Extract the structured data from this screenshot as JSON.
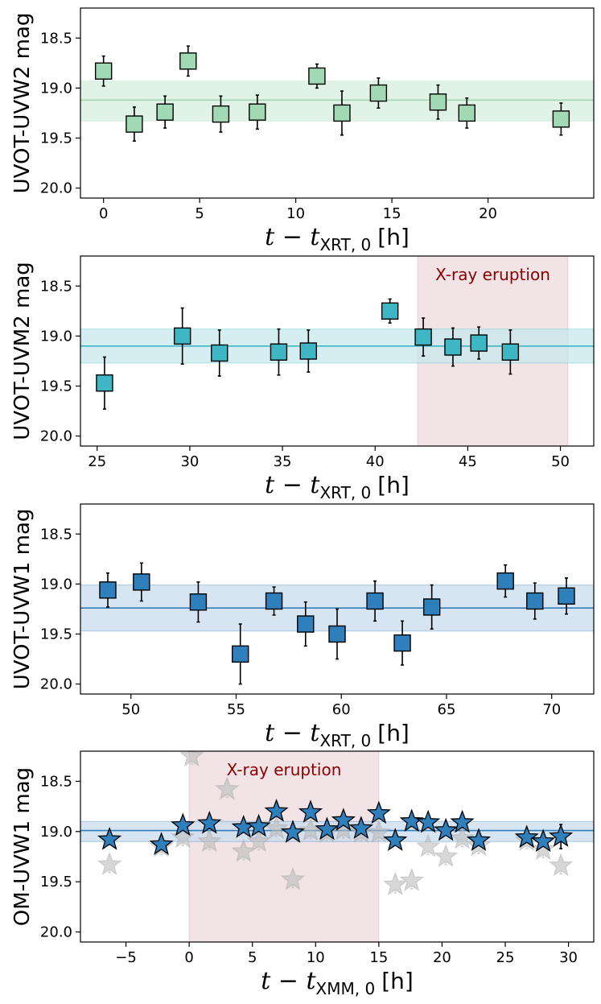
{
  "chart_data": [
    {
      "type": "scatter",
      "marker": "square",
      "ylabel": "UVOT-UVW2 mag",
      "xlabel": {
        "main": "t − t",
        "sub": "XRT, 0",
        "unit": "[h]"
      },
      "xlim": [
        -1.2,
        25.5
      ],
      "ylim": [
        20.1,
        18.2
      ],
      "xticks": [
        0,
        5,
        10,
        15,
        20
      ],
      "yticks": [
        18.5,
        19.0,
        19.5,
        20.0
      ],
      "xtick_labels": [
        "0",
        "5",
        "10",
        "15",
        "20"
      ],
      "ytick_labels": [
        "18.5",
        "19.0",
        "19.5",
        "20.0"
      ],
      "mean": 19.12,
      "band": [
        18.93,
        19.33
      ],
      "color": "#a1d9b4",
      "band_color": "#d6efdd",
      "series": [
        {
          "x": [
            0.0,
            1.6,
            3.2,
            4.4,
            6.1,
            8.0,
            11.1,
            12.4,
            14.3,
            17.4,
            18.9,
            23.8
          ],
          "y": [
            18.83,
            19.36,
            19.24,
            18.73,
            19.26,
            19.24,
            18.88,
            19.25,
            19.05,
            19.14,
            19.25,
            19.31
          ],
          "err": [
            0.15,
            0.17,
            0.16,
            0.15,
            0.18,
            0.17,
            0.12,
            0.22,
            0.15,
            0.17,
            0.15,
            0.16
          ]
        }
      ]
    },
    {
      "type": "scatter",
      "marker": "square",
      "ylabel": "UVOT-UVM2 mag",
      "xlabel": {
        "main": "t − t",
        "sub": "XRT, 0",
        "unit": "[h]"
      },
      "xlim": [
        24.1,
        51.8
      ],
      "ylim": [
        20.1,
        18.2
      ],
      "xticks": [
        25,
        30,
        35,
        40,
        45,
        50
      ],
      "yticks": [
        18.5,
        19.0,
        19.5,
        20.0
      ],
      "xtick_labels": [
        "25",
        "30",
        "35",
        "40",
        "45",
        "50"
      ],
      "ytick_labels": [
        "18.5",
        "19.0",
        "19.5",
        "20.0"
      ],
      "mean": 19.1,
      "band": [
        18.93,
        19.27
      ],
      "color": "#3fb6c3",
      "band_color": "#c6e8ec",
      "shade": {
        "x0": 42.3,
        "x1": 50.4,
        "label": "X-ray eruption",
        "color": "#f1e3e6"
      },
      "series": [
        {
          "x": [
            25.4,
            29.6,
            31.6,
            34.8,
            36.4,
            40.8,
            42.6,
            44.2,
            45.6,
            47.3
          ],
          "y": [
            19.47,
            19.0,
            19.17,
            19.16,
            19.15,
            18.75,
            19.01,
            19.11,
            19.07,
            19.16
          ],
          "err": [
            0.26,
            0.28,
            0.23,
            0.23,
            0.21,
            0.12,
            0.19,
            0.19,
            0.16,
            0.22
          ]
        }
      ]
    },
    {
      "type": "scatter",
      "marker": "square",
      "ylabel": "UVOT-UVW1 mag",
      "xlabel": {
        "main": "t − t",
        "sub": "XRT, 0",
        "unit": "[h]"
      },
      "xlim": [
        47.6,
        72.0
      ],
      "ylim": [
        20.1,
        18.2
      ],
      "xticks": [
        50,
        55,
        60,
        65,
        70
      ],
      "yticks": [
        18.5,
        19.0,
        19.5,
        20.0
      ],
      "xtick_labels": [
        "50",
        "55",
        "60",
        "65",
        "70"
      ],
      "ytick_labels": [
        "18.5",
        "19.0",
        "19.5",
        "20.0"
      ],
      "mean": 19.24,
      "band": [
        19.01,
        19.47
      ],
      "color": "#2f7fbd",
      "band_color": "#c9dcee",
      "series": [
        {
          "x": [
            48.9,
            50.5,
            53.2,
            55.2,
            56.8,
            58.3,
            59.8,
            61.6,
            62.9,
            64.3,
            67.8,
            69.2,
            70.7
          ],
          "y": [
            19.06,
            18.98,
            19.18,
            19.7,
            19.17,
            19.4,
            19.5,
            19.17,
            19.59,
            19.23,
            18.97,
            19.17,
            19.12
          ],
          "err": [
            0.17,
            0.19,
            0.2,
            0.3,
            0.14,
            0.22,
            0.25,
            0.2,
            0.22,
            0.22,
            0.16,
            0.18,
            0.18
          ]
        }
      ]
    },
    {
      "type": "scatter",
      "marker": "star",
      "ylabel": "OM-UVW1 mag",
      "xlabel": {
        "main": "t − t",
        "sub": "XMM, 0",
        "unit": "[h]"
      },
      "xlim": [
        -8.6,
        32.0
      ],
      "ylim": [
        20.1,
        18.2
      ],
      "xticks": [
        -5,
        0,
        5,
        10,
        15,
        20,
        25,
        30
      ],
      "yticks": [
        18.5,
        19.0,
        19.5,
        20.0
      ],
      "xtick_labels": [
        "−5",
        "0",
        "5",
        "10",
        "15",
        "20",
        "25",
        "30"
      ],
      "ytick_labels": [
        "18.5",
        "19.0",
        "19.5",
        "20.0"
      ],
      "mean": 18.99,
      "band": [
        18.9,
        19.1
      ],
      "color": "#2f7fbd",
      "band_color": "#c9dcee",
      "shade": {
        "x0": 0.0,
        "x1": 15.0,
        "label": "X-ray eruption",
        "color": "#f1e3e6"
      },
      "series": [
        {
          "role": "secondary",
          "color": "#bdbdbd",
          "x": [
            -6.3,
            -2.2,
            -0.5,
            0.2,
            1.6,
            3.0,
            4.3,
            5.5,
            6.9,
            8.2,
            9.6,
            10.9,
            12.2,
            13.6,
            15.0,
            16.3,
            17.6,
            18.9,
            20.3,
            21.6,
            22.9,
            26.7,
            28.0,
            29.4
          ],
          "y": [
            19.33,
            19.15,
            19.06,
            18.25,
            19.1,
            18.58,
            19.2,
            19.1,
            18.97,
            19.48,
            18.99,
            19.01,
            18.98,
            19.01,
            19.01,
            19.53,
            19.49,
            19.15,
            19.25,
            19.07,
            19.14,
            19.09,
            19.18,
            19.34
          ],
          "err": [
            0.08,
            0.08,
            0.08,
            0.08,
            0.08,
            0.08,
            0.08,
            0.08,
            0.08,
            0.08,
            0.08,
            0.08,
            0.08,
            0.08,
            0.08,
            0.08,
            0.08,
            0.08,
            0.08,
            0.08,
            0.08,
            0.08,
            0.08,
            0.08
          ]
        },
        {
          "role": "primary",
          "x": [
            -6.3,
            -2.2,
            -0.5,
            1.6,
            4.3,
            5.5,
            6.9,
            8.2,
            9.6,
            10.9,
            12.2,
            13.6,
            15.0,
            16.3,
            17.6,
            18.9,
            20.3,
            21.6,
            22.9,
            26.7,
            28.0,
            29.4
          ],
          "y": [
            19.08,
            19.13,
            18.94,
            18.92,
            18.96,
            18.95,
            18.8,
            19.01,
            18.81,
            18.98,
            18.89,
            18.97,
            18.82,
            19.09,
            18.9,
            18.91,
            18.99,
            18.91,
            19.09,
            19.06,
            19.1,
            19.05
          ],
          "err": [
            0.0,
            0.0,
            0.0,
            0.0,
            0.0,
            0.0,
            0.0,
            0.0,
            0.0,
            0.0,
            0.0,
            0.0,
            0.0,
            0.0,
            0.0,
            0.0,
            0.0,
            0.0,
            0.0,
            0.0,
            0.0,
            0.12
          ]
        }
      ]
    }
  ]
}
